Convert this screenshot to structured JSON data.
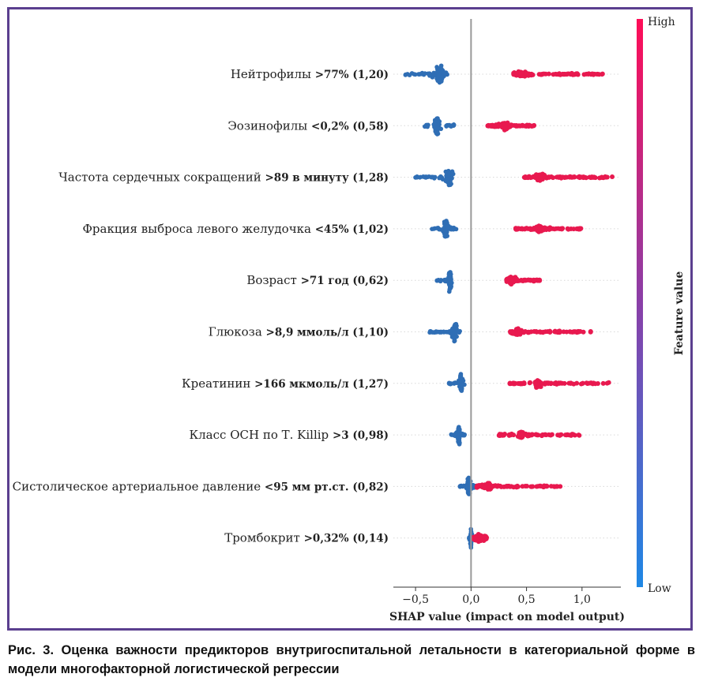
{
  "chart_data": {
    "type": "scatter",
    "subtype": "shap-beeswarm",
    "xlabel": "SHAP value (impact on model output)",
    "xlim": [
      -0.7,
      1.35
    ],
    "xticks": [
      -0.5,
      0.0,
      0.5,
      1.0
    ],
    "xtick_labels": [
      "−0,5",
      "0,0",
      "0,5",
      "1,0"
    ],
    "colorbar": {
      "label": "Feature value",
      "high": "High",
      "low": "Low",
      "high_color": "#ff0d57",
      "low_color": "#1e88e5"
    },
    "features": [
      {
        "name": "Нейтрофилы",
        "threshold": ">77%",
        "value": "(1,20)",
        "neg_range": [
          -0.6,
          -0.17
        ],
        "neg_center": -0.28,
        "pos_range": [
          0.38,
          1.2
        ],
        "pos_center": 0.45
      },
      {
        "name": "Эозинофилы",
        "threshold": "<0,2%",
        "value": "(0,58)",
        "neg_range": [
          -0.42,
          -0.14
        ],
        "neg_center": -0.31,
        "pos_range": [
          0.15,
          0.58
        ],
        "pos_center": 0.3
      },
      {
        "name": "Частота сердечных сокращений",
        "threshold": ">89 в минуту",
        "value": "(1,28)",
        "neg_range": [
          -0.52,
          -0.16
        ],
        "neg_center": -0.2,
        "pos_range": [
          0.48,
          1.28
        ],
        "pos_center": 0.62
      },
      {
        "name": "Фракция выброса левого желудочка",
        "threshold": "<45%",
        "value": "(1,02)",
        "neg_range": [
          -0.36,
          -0.12
        ],
        "neg_center": -0.23,
        "pos_range": [
          0.4,
          1.02
        ],
        "pos_center": 0.62
      },
      {
        "name": "Возраст",
        "threshold": ">71 год",
        "value": "(0,62)",
        "neg_range": [
          -0.31,
          -0.15
        ],
        "neg_center": -0.19,
        "pos_range": [
          0.32,
          0.62
        ],
        "pos_center": 0.36
      },
      {
        "name": "Глюкоза",
        "threshold": ">8,9 ммоль/л",
        "value": "(1,10)",
        "neg_range": [
          -0.38,
          -0.1
        ],
        "neg_center": -0.15,
        "pos_range": [
          0.35,
          1.1
        ],
        "pos_center": 0.42
      },
      {
        "name": "Креатинин",
        "threshold": ">166 мкмоль/л",
        "value": "(1,27)",
        "neg_range": [
          -0.2,
          -0.05
        ],
        "neg_center": -0.09,
        "pos_range": [
          0.35,
          1.27
        ],
        "pos_center": 0.6
      },
      {
        "name": "Класс ОСН по Т. Killip",
        "threshold": ">3",
        "value": "(0,98)",
        "neg_range": [
          -0.18,
          -0.05
        ],
        "neg_center": -0.11,
        "pos_range": [
          0.25,
          0.98
        ],
        "pos_center": 0.45
      },
      {
        "name": "Систолическое  артериальное давление",
        "threshold": "<95 мм рт.ст.",
        "value": "(0,82)",
        "neg_range": [
          -0.1,
          0.05
        ],
        "neg_center": -0.02,
        "pos_range": [
          0.05,
          0.82
        ],
        "pos_center": 0.15
      },
      {
        "name": "Тромбокрит",
        "threshold": ">0,32%",
        "value": "(0,14)",
        "neg_range": [
          -0.02,
          0.02
        ],
        "neg_center": 0.0,
        "pos_range": [
          0.02,
          0.14
        ],
        "pos_center": 0.08
      }
    ]
  },
  "caption": "Рис. 3. Оценка важности предикторов внутригоспитальной летальности в категориальной форме в модели многофакторной логистической регрессии"
}
